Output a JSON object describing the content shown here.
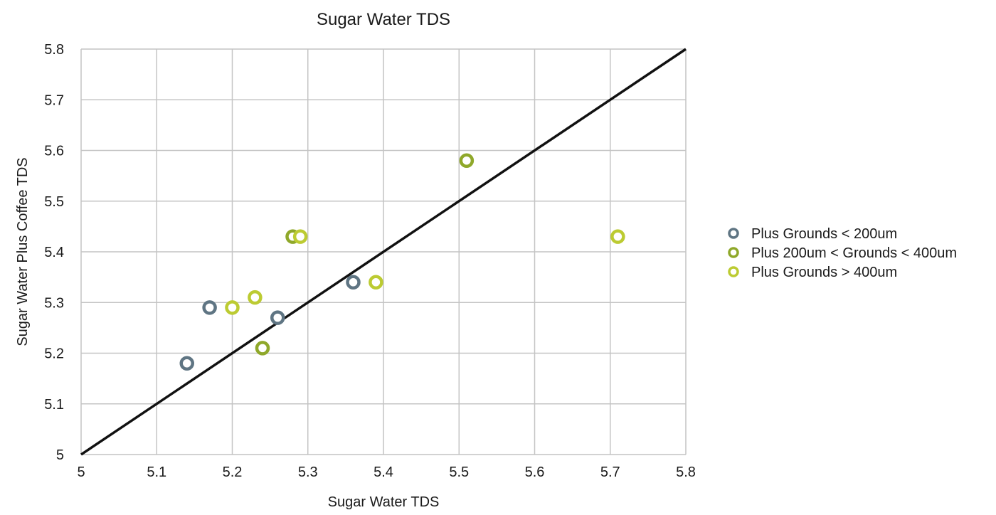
{
  "chart_data": {
    "type": "scatter",
    "title": "Sugar Water TDS",
    "xlabel": "Sugar Water TDS",
    "ylabel": "Sugar Water Plus Coffee TDS",
    "xlim": [
      5,
      5.8
    ],
    "ylim": [
      5,
      5.8
    ],
    "x_ticks": [
      "5",
      "5.1",
      "5.2",
      "5.3",
      "5.4",
      "5.5",
      "5.6",
      "5.7",
      "5.8"
    ],
    "y_ticks": [
      "5",
      "5.1",
      "5.2",
      "5.3",
      "5.4",
      "5.5",
      "5.6",
      "5.7",
      "5.8"
    ],
    "grid": true,
    "legend_position": "right",
    "reference_line": {
      "from": [
        5,
        5
      ],
      "to": [
        5.8,
        5.8
      ],
      "color": "#111111"
    },
    "series": [
      {
        "name": "Plus Grounds < 200um",
        "color": "#5f7583",
        "points": [
          {
            "x": 5.14,
            "y": 5.18
          },
          {
            "x": 5.17,
            "y": 5.29
          },
          {
            "x": 5.26,
            "y": 5.27
          },
          {
            "x": 5.36,
            "y": 5.34
          }
        ]
      },
      {
        "name": "Plus 200um < Grounds < 400um",
        "color": "#8fa82a",
        "points": [
          {
            "x": 5.24,
            "y": 5.21
          },
          {
            "x": 5.28,
            "y": 5.43
          },
          {
            "x": 5.51,
            "y": 5.58
          }
        ]
      },
      {
        "name": "Plus Grounds > 400um",
        "color": "#bccb32",
        "points": [
          {
            "x": 5.2,
            "y": 5.29
          },
          {
            "x": 5.23,
            "y": 5.31
          },
          {
            "x": 5.29,
            "y": 5.43
          },
          {
            "x": 5.39,
            "y": 5.34
          },
          {
            "x": 5.71,
            "y": 5.43
          }
        ]
      }
    ]
  }
}
